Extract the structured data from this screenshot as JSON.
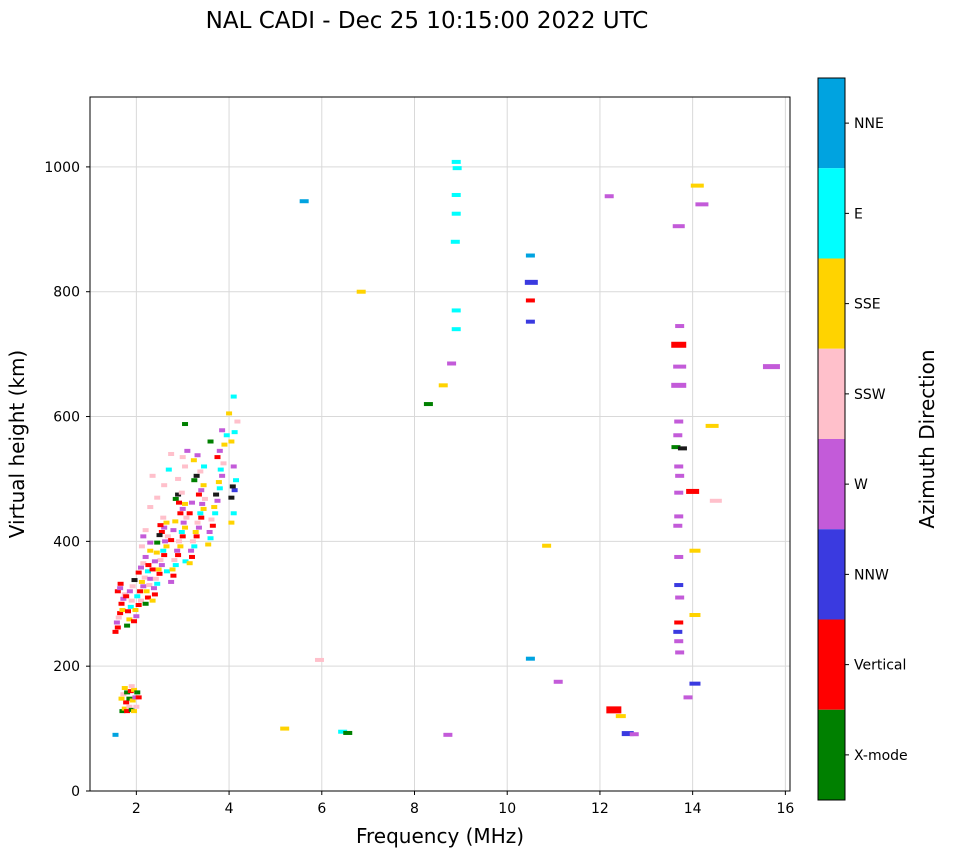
{
  "chart_data": {
    "type": "scatter",
    "title": "NAL CADI - Dec 25 10:15:00 2022 UTC",
    "xlabel": "Frequency (MHz)",
    "ylabel": "Virtual height (km)",
    "xlim": [
      1,
      16.1
    ],
    "ylim": [
      0,
      1112
    ],
    "xticks": [
      2,
      4,
      6,
      8,
      10,
      12,
      14,
      16
    ],
    "yticks": [
      0,
      200,
      400,
      600,
      800,
      1000
    ],
    "grid": true,
    "legend_position": "right-colorbar",
    "colorbar": {
      "label": "Azimuth Direction",
      "categories": [
        "NNE",
        "E",
        "SSE",
        "SSW",
        "W",
        "NNW",
        "Vertical",
        "X-mode"
      ],
      "colors": [
        "#00A3E0",
        "#00FFFF",
        "#FFD300",
        "#FFC0CB",
        "#C35BD9",
        "#3A3AE0",
        "#FF0000",
        "#008000"
      ]
    },
    "extra_colors": {
      "dark": "#1A1A1A"
    },
    "point_format": "[freq_MHz, height_km, color_index(0-7 = colorbar categories, 8 = dark), optional_width_px, optional_height_px]",
    "cluster_points": [
      [
        1.55,
        255,
        6
      ],
      [
        1.6,
        262,
        6
      ],
      [
        1.58,
        270,
        4
      ],
      [
        1.62,
        278,
        3
      ],
      [
        1.65,
        285,
        6
      ],
      [
        1.7,
        290,
        2
      ],
      [
        1.68,
        300,
        6
      ],
      [
        1.72,
        308,
        4
      ],
      [
        1.75,
        315,
        3
      ],
      [
        1.6,
        320,
        6
      ],
      [
        1.65,
        325,
        4
      ],
      [
        1.8,
        265,
        7
      ],
      [
        1.85,
        275,
        2
      ],
      [
        1.82,
        288,
        6
      ],
      [
        1.88,
        295,
        1
      ],
      [
        1.9,
        305,
        3
      ],
      [
        1.78,
        312,
        6
      ],
      [
        1.86,
        320,
        4
      ],
      [
        1.92,
        328,
        3
      ],
      [
        1.66,
        332,
        6
      ],
      [
        1.95,
        272,
        6
      ],
      [
        2.0,
        280,
        4
      ],
      [
        1.98,
        290,
        2
      ],
      [
        2.05,
        298,
        6
      ],
      [
        2.1,
        305,
        3
      ],
      [
        2.02,
        312,
        1
      ],
      [
        2.08,
        320,
        6
      ],
      [
        2.15,
        328,
        4
      ],
      [
        2.12,
        335,
        2
      ],
      [
        2.18,
        342,
        3
      ],
      [
        2.05,
        350,
        6
      ],
      [
        2.1,
        358,
        4
      ],
      [
        2.2,
        300,
        7
      ],
      [
        2.25,
        310,
        6
      ],
      [
        2.22,
        320,
        2
      ],
      [
        2.28,
        330,
        3
      ],
      [
        2.3,
        340,
        4
      ],
      [
        2.25,
        352,
        1
      ],
      [
        2.15,
        365,
        3
      ],
      [
        2.2,
        375,
        4
      ],
      [
        2.3,
        385,
        2
      ],
      [
        2.12,
        392,
        3
      ],
      [
        1.96,
        338,
        8
      ],
      [
        2.26,
        362,
        6
      ],
      [
        2.3,
        398,
        4
      ],
      [
        2.15,
        408,
        4
      ],
      [
        2.2,
        418,
        3
      ],
      [
        2.35,
        305,
        2
      ],
      [
        2.4,
        315,
        6
      ],
      [
        2.38,
        325,
        4
      ],
      [
        2.45,
        332,
        1
      ],
      [
        2.42,
        340,
        3
      ],
      [
        2.5,
        348,
        6
      ],
      [
        2.48,
        355,
        2
      ],
      [
        2.55,
        362,
        4
      ],
      [
        2.52,
        370,
        3
      ],
      [
        2.6,
        378,
        6
      ],
      [
        2.58,
        385,
        1
      ],
      [
        2.65,
        392,
        2
      ],
      [
        2.62,
        400,
        4
      ],
      [
        2.68,
        408,
        3
      ],
      [
        2.55,
        415,
        6
      ],
      [
        2.6,
        422,
        4
      ],
      [
        2.65,
        430,
        2
      ],
      [
        2.45,
        398,
        7
      ],
      [
        2.5,
        410,
        8
      ],
      [
        2.58,
        438,
        3
      ],
      [
        2.35,
        355,
        6
      ],
      [
        2.4,
        368,
        4
      ],
      [
        2.66,
        352,
        1
      ],
      [
        2.44,
        382,
        2
      ],
      [
        2.52,
        426,
        6
      ],
      [
        2.3,
        455,
        3
      ],
      [
        2.45,
        470,
        3
      ],
      [
        2.6,
        490,
        3
      ],
      [
        2.35,
        505,
        3
      ],
      [
        2.7,
        515,
        1
      ],
      [
        2.75,
        540,
        3
      ],
      [
        3.05,
        520,
        3
      ],
      [
        3.1,
        545,
        4
      ],
      [
        2.9,
        500,
        3
      ],
      [
        3.0,
        535,
        3
      ],
      [
        2.75,
        335,
        4
      ],
      [
        2.8,
        345,
        6
      ],
      [
        2.78,
        355,
        2
      ],
      [
        2.85,
        362,
        1
      ],
      [
        2.82,
        370,
        3
      ],
      [
        2.9,
        378,
        6
      ],
      [
        2.88,
        385,
        4
      ],
      [
        2.95,
        392,
        2
      ],
      [
        2.92,
        400,
        3
      ],
      [
        3.0,
        408,
        6
      ],
      [
        2.98,
        415,
        1
      ],
      [
        3.05,
        422,
        2
      ],
      [
        3.02,
        430,
        4
      ],
      [
        3.08,
        438,
        3
      ],
      [
        2.95,
        445,
        6
      ],
      [
        3.0,
        452,
        4
      ],
      [
        3.05,
        460,
        2
      ],
      [
        2.85,
        468,
        7
      ],
      [
        2.9,
        475,
        8
      ],
      [
        2.98,
        478,
        3
      ],
      [
        2.75,
        402,
        6
      ],
      [
        2.8,
        418,
        4
      ],
      [
        3.06,
        368,
        1
      ],
      [
        2.84,
        432,
        2
      ],
      [
        2.92,
        462,
        6
      ],
      [
        3.05,
        588,
        7
      ],
      [
        3.15,
        365,
        2
      ],
      [
        3.2,
        375,
        6
      ],
      [
        3.18,
        385,
        4
      ],
      [
        3.25,
        392,
        1
      ],
      [
        3.22,
        400,
        3
      ],
      [
        3.3,
        408,
        6
      ],
      [
        3.28,
        415,
        2
      ],
      [
        3.35,
        422,
        4
      ],
      [
        3.32,
        430,
        3
      ],
      [
        3.4,
        438,
        6
      ],
      [
        3.38,
        445,
        1
      ],
      [
        3.45,
        452,
        2
      ],
      [
        3.42,
        460,
        4
      ],
      [
        3.48,
        468,
        3
      ],
      [
        3.35,
        475,
        6
      ],
      [
        3.4,
        482,
        4
      ],
      [
        3.45,
        490,
        2
      ],
      [
        3.25,
        498,
        7
      ],
      [
        3.3,
        505,
        8
      ],
      [
        3.38,
        512,
        3
      ],
      [
        3.15,
        445,
        6
      ],
      [
        3.2,
        462,
        4
      ],
      [
        3.46,
        520,
        1
      ],
      [
        3.24,
        530,
        2
      ],
      [
        3.32,
        538,
        4
      ],
      [
        3.55,
        395,
        2
      ],
      [
        3.6,
        405,
        1
      ],
      [
        3.58,
        415,
        4
      ],
      [
        3.65,
        425,
        6
      ],
      [
        3.62,
        435,
        3
      ],
      [
        3.7,
        445,
        1
      ],
      [
        3.68,
        455,
        2
      ],
      [
        3.75,
        465,
        4
      ],
      [
        3.72,
        475,
        8
      ],
      [
        3.8,
        485,
        1
      ],
      [
        3.78,
        495,
        2
      ],
      [
        3.85,
        505,
        4
      ],
      [
        3.82,
        515,
        1
      ],
      [
        3.88,
        525,
        3
      ],
      [
        3.75,
        535,
        6
      ],
      [
        3.8,
        545,
        4
      ],
      [
        3.9,
        555,
        2
      ],
      [
        3.6,
        560,
        7
      ],
      [
        3.95,
        570,
        1
      ],
      [
        3.85,
        578,
        4
      ],
      [
        4.05,
        430,
        2
      ],
      [
        4.1,
        445,
        1
      ],
      [
        4.05,
        470,
        8
      ],
      [
        4.12,
        482,
        5
      ],
      [
        4.08,
        488,
        8
      ],
      [
        4.15,
        498,
        1
      ],
      [
        4.1,
        520,
        4
      ],
      [
        4.05,
        560,
        2
      ],
      [
        4.12,
        575,
        1
      ],
      [
        4.0,
        605,
        2
      ],
      [
        4.18,
        592,
        3
      ],
      [
        4.1,
        632,
        1
      ],
      [
        1.7,
        128,
        7
      ],
      [
        1.75,
        132,
        2
      ],
      [
        1.8,
        128,
        6
      ],
      [
        1.85,
        135,
        3
      ],
      [
        1.9,
        130,
        7
      ],
      [
        1.95,
        128,
        2
      ],
      [
        1.78,
        142,
        6
      ],
      [
        1.85,
        148,
        7
      ],
      [
        1.92,
        145,
        2
      ],
      [
        1.98,
        150,
        4
      ],
      [
        1.72,
        155,
        3
      ],
      [
        1.8,
        158,
        7
      ],
      [
        1.88,
        160,
        6
      ],
      [
        1.95,
        162,
        2
      ],
      [
        2.02,
        158,
        7
      ],
      [
        1.75,
        165,
        2
      ],
      [
        1.9,
        168,
        3
      ],
      [
        2.05,
        150,
        6
      ],
      [
        2.0,
        135,
        3
      ],
      [
        1.68,
        148,
        2
      ],
      [
        1.55,
        90,
        0
      ]
    ],
    "sparse_points": [
      [
        5.2,
        100,
        2
      ],
      [
        5.62,
        945,
        0
      ],
      [
        5.95,
        210,
        3
      ],
      [
        6.45,
        95,
        1
      ],
      [
        6.56,
        93,
        7
      ],
      [
        6.85,
        800,
        2
      ],
      [
        8.3,
        620,
        7
      ],
      [
        8.62,
        650,
        2
      ],
      [
        8.8,
        685,
        4
      ],
      [
        8.72,
        90,
        4
      ],
      [
        8.9,
        1008,
        1
      ],
      [
        8.92,
        998,
        1
      ],
      [
        8.9,
        955,
        1
      ],
      [
        8.9,
        925,
        1
      ],
      [
        8.88,
        880,
        1
      ],
      [
        8.9,
        770,
        1
      ],
      [
        8.9,
        740,
        1
      ],
      [
        10.5,
        858,
        0
      ],
      [
        10.52,
        815,
        5,
        13,
        5
      ],
      [
        10.5,
        786,
        6
      ],
      [
        10.5,
        752,
        5
      ],
      [
        10.5,
        212,
        0
      ],
      [
        10.85,
        393,
        2
      ],
      [
        11.1,
        175,
        4
      ],
      [
        12.2,
        953,
        4
      ],
      [
        12.3,
        130,
        6,
        15,
        7
      ],
      [
        12.45,
        120,
        2,
        10,
        4
      ],
      [
        12.6,
        92,
        5,
        12,
        5
      ],
      [
        12.74,
        91,
        4
      ],
      [
        13.7,
        905,
        4,
        12,
        4
      ],
      [
        14.1,
        970,
        2,
        13,
        4
      ],
      [
        14.2,
        940,
        4,
        13,
        4
      ],
      [
        13.72,
        745,
        4
      ],
      [
        13.7,
        715,
        6,
        15,
        6
      ],
      [
        13.72,
        680,
        4,
        13,
        4
      ],
      [
        13.7,
        650,
        4,
        15,
        5
      ],
      [
        15.7,
        680,
        4,
        17,
        5
      ],
      [
        14.42,
        585,
        2,
        13,
        4
      ],
      [
        13.7,
        592,
        4
      ],
      [
        13.68,
        570,
        4
      ],
      [
        13.64,
        551,
        7
      ],
      [
        13.78,
        549,
        8
      ],
      [
        13.7,
        520,
        4
      ],
      [
        13.72,
        505,
        4
      ],
      [
        14.0,
        480,
        6,
        13,
        5
      ],
      [
        13.7,
        478,
        4
      ],
      [
        14.5,
        465,
        3,
        12,
        4
      ],
      [
        13.7,
        440,
        4
      ],
      [
        13.68,
        425,
        4
      ],
      [
        14.05,
        385,
        2,
        11,
        4
      ],
      [
        13.7,
        375,
        4
      ],
      [
        13.7,
        330,
        5
      ],
      [
        13.72,
        310,
        4
      ],
      [
        14.05,
        282,
        2,
        11,
        4
      ],
      [
        13.7,
        270,
        6
      ],
      [
        13.68,
        255,
        5
      ],
      [
        13.7,
        240,
        4
      ],
      [
        13.72,
        222,
        4
      ],
      [
        14.05,
        172,
        5,
        11,
        4
      ],
      [
        13.9,
        150,
        4
      ]
    ]
  }
}
